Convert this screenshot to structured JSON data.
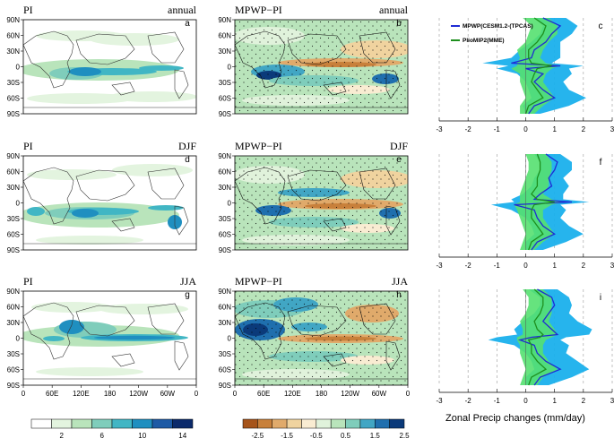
{
  "rows": [
    {
      "left_title": "PI",
      "mid_title": "MPWP−PI",
      "season": "annual",
      "map_a_letter": "a",
      "map_b_letter": "b",
      "zonal_letter": "c"
    },
    {
      "left_title": "PI",
      "mid_title": "MPWP−PI",
      "season": "DJF",
      "map_a_letter": "d",
      "map_b_letter": "e",
      "zonal_letter": "f"
    },
    {
      "left_title": "PI",
      "mid_title": "MPWP−PI",
      "season": "JJA",
      "map_a_letter": "g",
      "map_b_letter": "h",
      "zonal_letter": "i"
    }
  ],
  "lat_ticks": [
    "90N",
    "60N",
    "30N",
    "0",
    "30S",
    "60S",
    "90S"
  ],
  "lon_ticks": [
    "0",
    "60E",
    "120E",
    "180",
    "120W",
    "60W",
    "0"
  ],
  "colorbar_pi": {
    "labels": [
      "2",
      "6",
      "10",
      "14"
    ],
    "colors": [
      "#ffffff",
      "#e3f4df",
      "#b9e4bb",
      "#7fcdbb",
      "#41b6c4",
      "#1f8fc0",
      "#1d5aa5",
      "#0b2a6b"
    ]
  },
  "colorbar_diff": {
    "labels": [
      "-2.5",
      "-1.5",
      "-0.5",
      "0.5",
      "1.5",
      "2.5"
    ],
    "colors": [
      "#a6541a",
      "#c8803b",
      "#e0aa6b",
      "#f0d39f",
      "#f9ecd2",
      "#e0f2db",
      "#b9e4bb",
      "#7fcdbb",
      "#41a6c4",
      "#1f6fae",
      "#0b3a7a"
    ]
  },
  "colors": {
    "mpwp": "#1e2bd4",
    "pliomip": "#1e8f1e",
    "blue_band": "#1ab0ec",
    "green_band": "#55e070",
    "land": "#333333"
  },
  "chart_data": {
    "type": "line",
    "title": "",
    "xlabel": "Zonal Precip changes (mm/day)",
    "ylabel": "",
    "xlim": [
      -3,
      3
    ],
    "ylim": [
      -90,
      90
    ],
    "x_ticks": [
      "-3",
      "-2",
      "-1",
      "0",
      "1",
      "2",
      "3"
    ],
    "legend": [
      "MPWP(CESM1.2-(TPCAS)",
      "PlioMIP2(MME)"
    ],
    "legend_position": "top-left",
    "panels": [
      {
        "name": "annual",
        "lat": [
          -90,
          -75,
          -60,
          -45,
          -30,
          -15,
          -5,
          0,
          5,
          15,
          30,
          45,
          60,
          75,
          90
        ],
        "series": [
          {
            "name": "MPWP(CESM1.2-(TPCAS)",
            "values": [
              0.1,
              0.3,
              1.0,
              0.6,
              0.3,
              0.6,
              0.0,
              1.2,
              -0.5,
              0.2,
              0.3,
              0.7,
              0.9,
              1.2,
              0.6
            ]
          },
          {
            "name": "PlioMIP2(MME)",
            "values": [
              0.0,
              0.1,
              0.6,
              0.4,
              0.2,
              0.3,
              0.4,
              0.9,
              0.2,
              0.1,
              0.1,
              0.4,
              0.6,
              0.7,
              0.3
            ]
          }
        ],
        "bands": [
          {
            "name": "MPWP range",
            "low": [
              0.0,
              -0.1,
              0.2,
              0.1,
              0.0,
              -0.3,
              -1.0,
              -0.6,
              -1.5,
              -0.5,
              -0.2,
              0.2,
              0.5,
              0.6,
              0.3
            ],
            "high": [
              0.5,
              1.5,
              2.1,
              1.5,
              1.3,
              1.6,
              1.5,
              2.0,
              0.9,
              1.2,
              1.2,
              1.2,
              1.6,
              1.8,
              1.4
            ]
          },
          {
            "name": "PlioMIP2 range",
            "low": [
              -0.2,
              -0.2,
              0.0,
              -0.1,
              -0.2,
              -0.2,
              -0.5,
              -0.3,
              -0.3,
              -0.2,
              -0.3,
              0.0,
              0.1,
              0.2,
              -0.1
            ],
            "high": [
              0.3,
              0.6,
              1.0,
              0.8,
              0.6,
              0.7,
              0.9,
              1.2,
              0.7,
              0.5,
              0.6,
              0.8,
              1.1,
              1.1,
              0.8
            ]
          }
        ]
      },
      {
        "name": "DJF",
        "lat": [
          -90,
          -75,
          -60,
          -45,
          -30,
          -15,
          -5,
          0,
          5,
          15,
          30,
          45,
          60,
          75,
          90
        ],
        "series": [
          {
            "name": "MPWP(CESM1.2-(TPCAS)",
            "values": [
              0.2,
              0.4,
              1.0,
              0.6,
              0.4,
              0.3,
              -0.4,
              1.6,
              0.3,
              0.5,
              0.9,
              0.8,
              1.0,
              1.1,
              0.7
            ]
          },
          {
            "name": "PlioMIP2(MME)",
            "values": [
              0.1,
              0.2,
              0.6,
              0.4,
              0.2,
              0.2,
              0.3,
              1.0,
              0.4,
              0.2,
              0.4,
              0.4,
              0.5,
              0.5,
              0.4
            ]
          }
        ],
        "bands": [
          {
            "name": "MPWP range",
            "low": [
              0.0,
              0.0,
              0.3,
              0.2,
              0.0,
              -0.5,
              -1.2,
              -0.4,
              -0.5,
              -0.1,
              0.2,
              0.3,
              0.5,
              0.5,
              0.3
            ],
            "high": [
              0.6,
              1.4,
              2.0,
              1.5,
              1.2,
              1.4,
              1.2,
              2.2,
              1.3,
              1.3,
              1.5,
              1.3,
              1.6,
              1.6,
              1.2
            ]
          },
          {
            "name": "PlioMIP2 range",
            "low": [
              -0.2,
              -0.1,
              0.0,
              -0.1,
              -0.2,
              -0.3,
              -0.4,
              -0.2,
              -0.2,
              -0.2,
              -0.1,
              0.0,
              0.1,
              0.1,
              0.0
            ],
            "high": [
              0.3,
              0.6,
              1.0,
              0.8,
              0.6,
              0.6,
              0.9,
              1.3,
              0.9,
              0.6,
              0.8,
              0.8,
              0.9,
              0.9,
              0.7
            ]
          }
        ]
      },
      {
        "name": "JJA",
        "lat": [
          -90,
          -75,
          -60,
          -45,
          -30,
          -15,
          -5,
          0,
          5,
          15,
          30,
          45,
          60,
          75,
          90
        ],
        "series": [
          {
            "name": "MPWP(CESM1.2-(TPCAS)",
            "values": [
              0.3,
              0.5,
              1.2,
              0.7,
              0.4,
              0.3,
              -0.2,
              0.2,
              1.1,
              0.9,
              0.6,
              0.8,
              1.0,
              0.9,
              0.4
            ]
          },
          {
            "name": "PlioMIP2(MME)",
            "values": [
              0.1,
              0.2,
              0.7,
              0.4,
              0.2,
              0.2,
              0.1,
              0.5,
              0.6,
              0.4,
              0.3,
              0.5,
              0.6,
              0.6,
              0.3
            ]
          }
        ],
        "bands": [
          {
            "name": "MPWP range",
            "low": [
              0.0,
              0.0,
              0.3,
              0.2,
              0.0,
              -0.4,
              -1.3,
              -1.0,
              -0.3,
              -0.4,
              -0.1,
              0.3,
              0.5,
              0.5,
              0.1
            ],
            "high": [
              0.8,
              1.6,
              2.2,
              1.8,
              1.4,
              1.5,
              1.2,
              1.4,
              2.2,
              2.3,
              1.8,
              1.5,
              1.6,
              1.5,
              1.1
            ]
          },
          {
            "name": "PlioMIP2 range",
            "low": [
              -0.2,
              -0.1,
              0.0,
              -0.1,
              -0.2,
              -0.2,
              -0.3,
              -0.3,
              -0.1,
              -0.1,
              -0.2,
              0.0,
              0.1,
              0.1,
              -0.1
            ],
            "high": [
              0.4,
              0.6,
              1.1,
              0.8,
              0.6,
              0.6,
              0.7,
              0.9,
              1.1,
              1.0,
              0.8,
              0.9,
              0.9,
              0.9,
              0.6
            ]
          }
        ]
      }
    ]
  }
}
